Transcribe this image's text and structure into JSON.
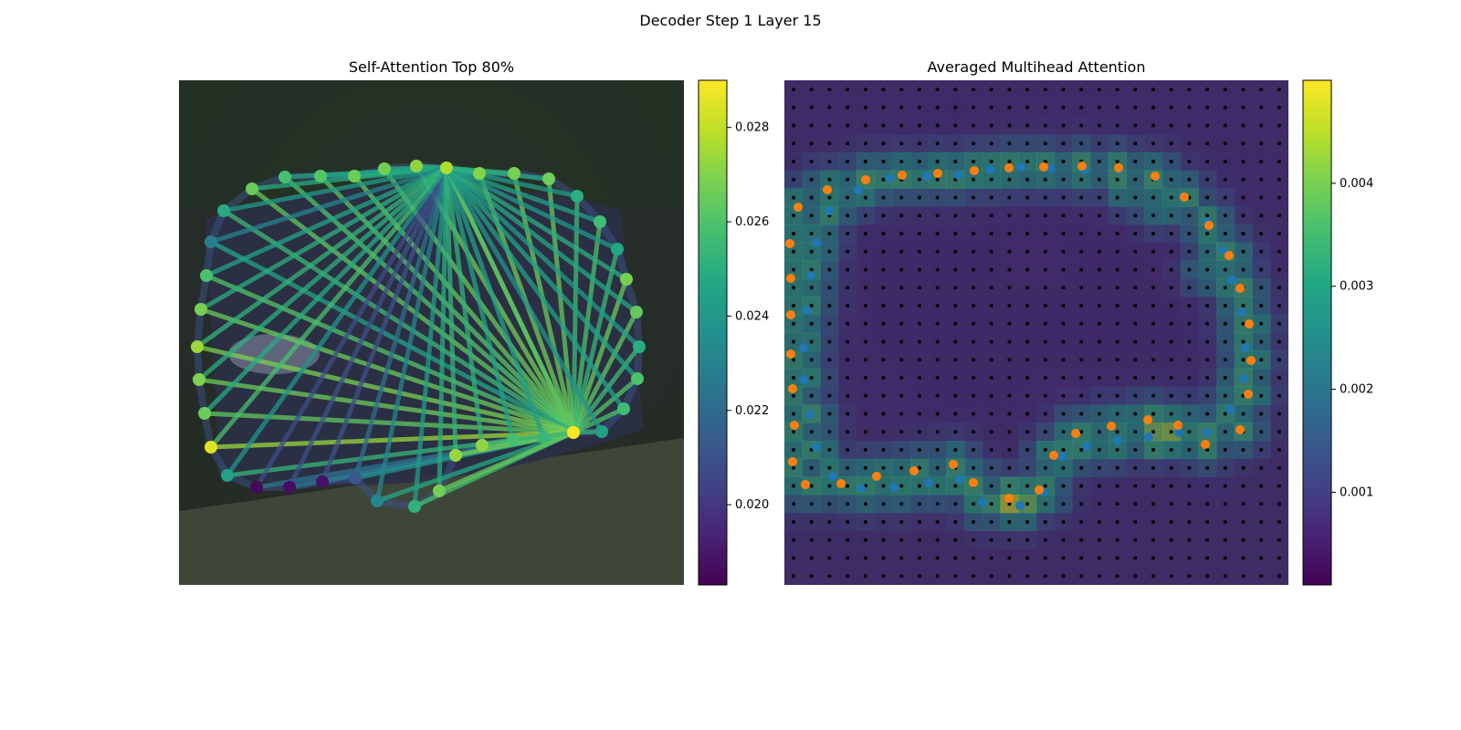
{
  "figure": {
    "suptitle": "Decoder Step 1 Layer 15"
  },
  "chart_data": [
    {
      "type": "scatter",
      "title": "Self-Attention Top 80%",
      "description": "Contour keypoints over a car image; lines connect attended point pairs, colored by attention weight (viridis).",
      "colormap": "viridis",
      "colorbar": {
        "ticks": [
          "0.020",
          "0.022",
          "0.024",
          "0.026",
          "0.028"
        ],
        "range": [
          0.0183,
          0.029
        ]
      },
      "points": [
        {
          "x": 281,
          "y": 534,
          "v": 0.0185
        },
        {
          "x": 317,
          "y": 534,
          "v": 0.0187
        },
        {
          "x": 353,
          "y": 528,
          "v": 0.0188
        },
        {
          "x": 389,
          "y": 524,
          "v": 0.0212
        },
        {
          "x": 413,
          "y": 549,
          "v": 0.0232
        },
        {
          "x": 454,
          "y": 555,
          "v": 0.0252
        },
        {
          "x": 481,
          "y": 538,
          "v": 0.0267
        },
        {
          "x": 499,
          "y": 499,
          "v": 0.0273
        },
        {
          "x": 528,
          "y": 488,
          "v": 0.0272
        },
        {
          "x": 562,
          "y": 482,
          "v": 0.0258
        },
        {
          "x": 595,
          "y": 479,
          "v": 0.0254
        },
        {
          "x": 628,
          "y": 474,
          "v": 0.029
        },
        {
          "x": 659,
          "y": 473,
          "v": 0.0244
        },
        {
          "x": 683,
          "y": 448,
          "v": 0.0256
        },
        {
          "x": 698,
          "y": 415,
          "v": 0.026
        },
        {
          "x": 700,
          "y": 380,
          "v": 0.025
        },
        {
          "x": 697,
          "y": 342,
          "v": 0.0264
        },
        {
          "x": 686,
          "y": 306,
          "v": 0.0268
        },
        {
          "x": 676,
          "y": 273,
          "v": 0.0247
        },
        {
          "x": 657,
          "y": 243,
          "v": 0.0257
        },
        {
          "x": 632,
          "y": 215,
          "v": 0.025
        },
        {
          "x": 601,
          "y": 196,
          "v": 0.0266
        },
        {
          "x": 563,
          "y": 190,
          "v": 0.0268
        },
        {
          "x": 525,
          "y": 190,
          "v": 0.027
        },
        {
          "x": 489,
          "y": 184,
          "v": 0.0277
        },
        {
          "x": 456,
          "y": 182,
          "v": 0.0272
        },
        {
          "x": 421,
          "y": 185,
          "v": 0.0267
        },
        {
          "x": 388,
          "y": 193,
          "v": 0.0266
        },
        {
          "x": 351,
          "y": 193,
          "v": 0.0261
        },
        {
          "x": 312,
          "y": 194,
          "v": 0.0258
        },
        {
          "x": 276,
          "y": 207,
          "v": 0.0265
        },
        {
          "x": 245,
          "y": 231,
          "v": 0.0248
        },
        {
          "x": 231,
          "y": 265,
          "v": 0.0228
        },
        {
          "x": 226,
          "y": 302,
          "v": 0.0259
        },
        {
          "x": 220,
          "y": 339,
          "v": 0.0268
        },
        {
          "x": 216,
          "y": 380,
          "v": 0.0274
        },
        {
          "x": 218,
          "y": 416,
          "v": 0.0269
        },
        {
          "x": 224,
          "y": 453,
          "v": 0.0265
        },
        {
          "x": 231,
          "y": 490,
          "v": 0.0285
        },
        {
          "x": 249,
          "y": 521,
          "v": 0.0245
        }
      ],
      "hub_indices": [
        11,
        24
      ],
      "hub_values": [
        0.0262,
        0.0232
      ]
    },
    {
      "type": "heatmap",
      "title": "Averaged Multihead Attention",
      "description": "Averaged multi-head attention heatmap (viridis, semi-transparent) over the car image with a black dot grid; orange = predicted contour points, blue = reference points.",
      "colormap": "viridis",
      "colorbar": {
        "ticks": [
          "0.001",
          "0.002",
          "0.003",
          "0.004"
        ],
        "range": [
          0.0001,
          0.005
        ]
      },
      "grid": {
        "rows": 28,
        "cols": 28
      },
      "series": [
        {
          "name": "orange",
          "color": "#ff7f0e",
          "points": [
            [
              865,
              267
            ],
            [
              866,
              305
            ],
            [
              866,
              345
            ],
            [
              866,
              388
            ],
            [
              868,
              426
            ],
            [
              870,
              466
            ],
            [
              868,
              506
            ],
            [
              882,
              531
            ],
            [
              921,
              530
            ],
            [
              960,
              522
            ],
            [
              1001,
              516
            ],
            [
              1044,
              509
            ],
            [
              1066,
              529
            ],
            [
              1105,
              546
            ],
            [
              1138,
              537
            ],
            [
              1154,
              499
            ],
            [
              1178,
              475
            ],
            [
              1217,
              467
            ],
            [
              1257,
              460
            ],
            [
              1290,
              466
            ],
            [
              1320,
              487
            ],
            [
              1358,
              471
            ],
            [
              1367,
              432
            ],
            [
              1370,
              395
            ],
            [
              1368,
              355
            ],
            [
              1358,
              316
            ],
            [
              1346,
              280
            ],
            [
              1324,
              247
            ],
            [
              1297,
              216
            ],
            [
              1265,
              193
            ],
            [
              1225,
              184
            ],
            [
              1185,
              182
            ],
            [
              1143,
              183
            ],
            [
              1105,
              184
            ],
            [
              1067,
              187
            ],
            [
              1027,
              190
            ],
            [
              988,
              192
            ],
            [
              948,
              197
            ],
            [
              906,
              208
            ],
            [
              874,
              227
            ]
          ]
        },
        {
          "name": "blue",
          "color": "#1f77b4",
          "points": [
            [
              894,
              266
            ],
            [
              888,
              302
            ],
            [
              884,
              340
            ],
            [
              880,
              381
            ],
            [
              880,
              416
            ],
            [
              887,
              454
            ],
            [
              894,
              490
            ],
            [
              912,
              522
            ],
            [
              943,
              535
            ],
            [
              979,
              534
            ],
            [
              1017,
              529
            ],
            [
              1051,
              525
            ],
            [
              1076,
              550
            ],
            [
              1117,
              554
            ],
            [
              1143,
              539
            ],
            [
              1163,
              500
            ],
            [
              1190,
              489
            ],
            [
              1224,
              483
            ],
            [
              1258,
              479
            ],
            [
              1291,
              474
            ],
            [
              1322,
              474
            ],
            [
              1347,
              449
            ],
            [
              1362,
              415
            ],
            [
              1364,
              381
            ],
            [
              1360,
              342
            ],
            [
              1349,
              307
            ],
            [
              1339,
              274
            ],
            [
              1322,
              243
            ],
            [
              1296,
              216
            ],
            [
              1266,
              194
            ],
            [
              1226,
              185
            ],
            [
              1188,
              186
            ],
            [
              1151,
              185
            ],
            [
              1118,
              183
            ],
            [
              1085,
              186
            ],
            [
              1050,
              192
            ],
            [
              1015,
              193
            ],
            [
              974,
              195
            ],
            [
              940,
              208
            ],
            [
              908,
              231
            ]
          ]
        }
      ]
    }
  ],
  "colors": {
    "orange": "#ff7f0e",
    "blue": "#1f77b4",
    "grid_dot": "#000000"
  }
}
